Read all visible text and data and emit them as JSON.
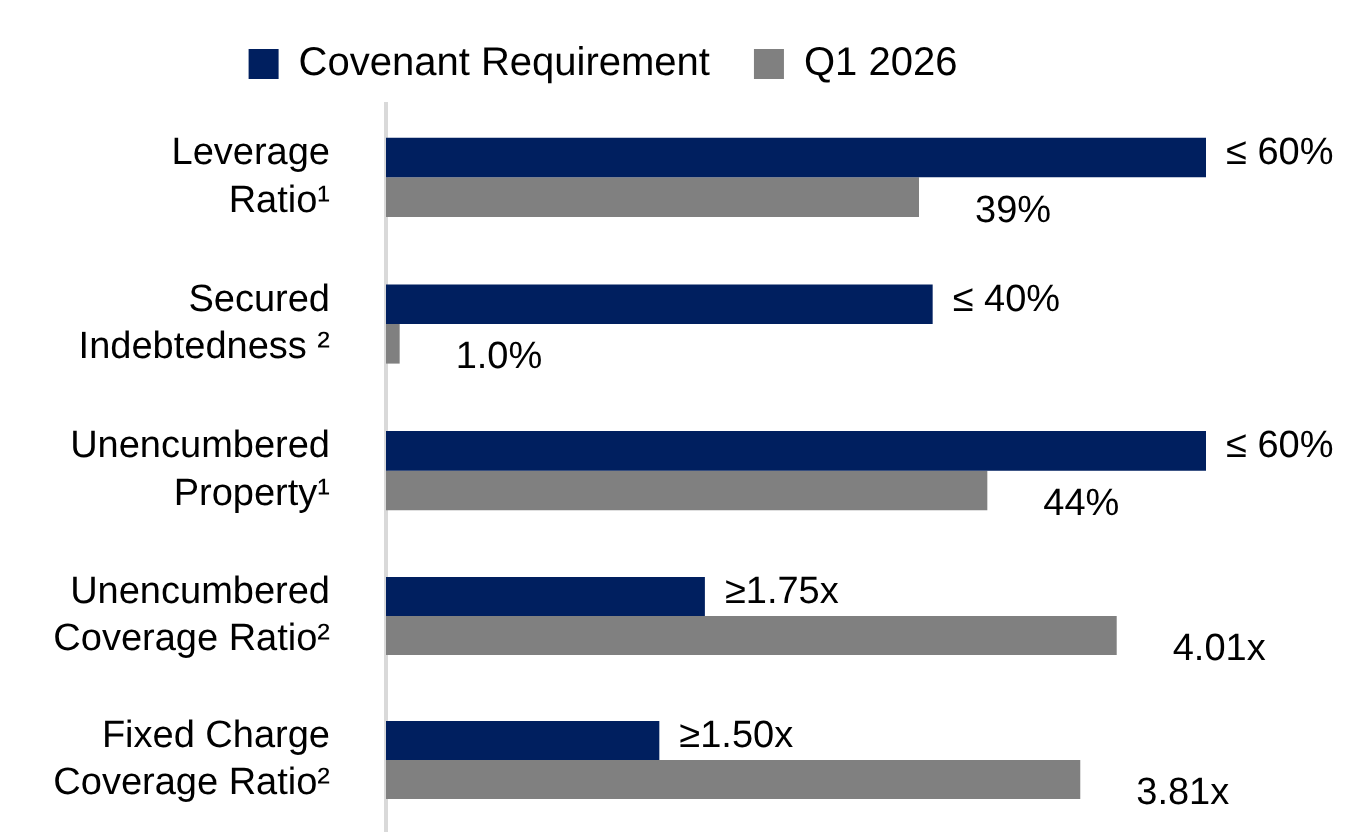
{
  "chart_data": [
    {
      "type": "bar",
      "orientation": "horizontal",
      "legend": "top",
      "tick_labels": "y",
      "categories": [
        "Leverage Ratio¹",
        "Secured Indebtedness ²",
        "Unencumbered Property¹"
      ],
      "series": [
        {
          "name": "Covenant Requirement",
          "color": "#001f5f",
          "values": [
            60,
            40,
            60
          ],
          "value_labels": [
            "≤ 60%",
            "≤ 40%",
            "≤ 60%"
          ]
        },
        {
          "name": "Q1 2026",
          "color": "#808080",
          "values": [
            39,
            1.0,
            44
          ],
          "value_labels": [
            "39%",
            "1.0%",
            "44%"
          ]
        }
      ]
    },
    {
      "type": "bar",
      "orientation": "horizontal",
      "tick_labels": "y",
      "categories": [
        "Unencumbered Coverage Ratio²",
        "Fixed Charge Coverage Ratio²"
      ],
      "series": [
        {
          "color": "#001f5f",
          "values": [
            1.75,
            1.5
          ],
          "value_labels": [
            "≥1.75x",
            "≥1.50x"
          ]
        },
        {
          "color": "#808080",
          "values": [
            4.01,
            3.81
          ],
          "value_labels": [
            "4.01x",
            "3.81x"
          ]
        }
      ]
    }
  ]
}
